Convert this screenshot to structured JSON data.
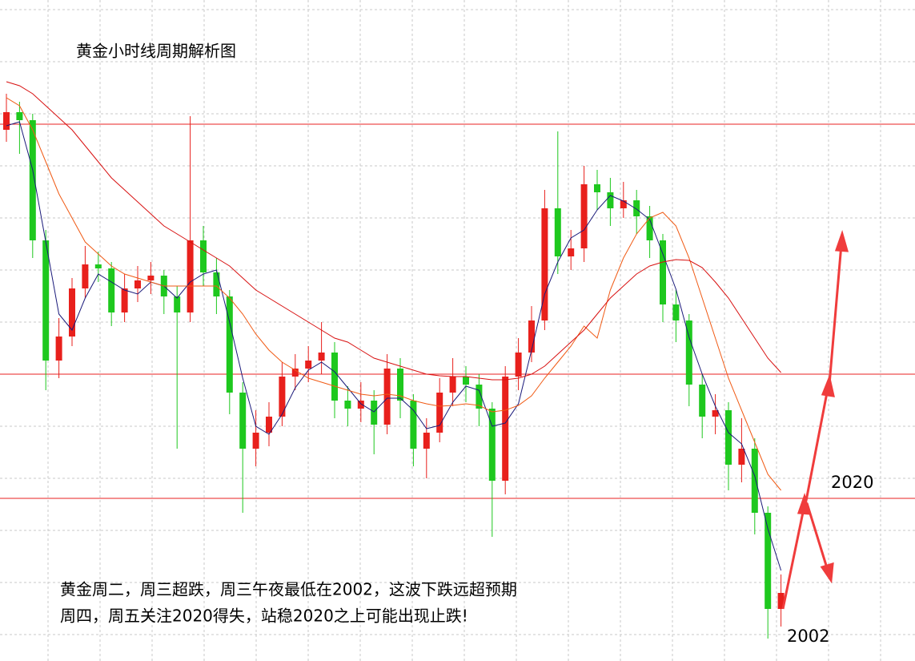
{
  "chart_data": {
    "type": "candlestick",
    "title": "黄金小时线周期解析图",
    "annotation_lines": [
      "黄金周二，周三超跌，周三午夜最低在2002，这波下跌远超预期",
      "周四，周五关注2020得失，站稳2020之上可能出现止跌!"
    ],
    "ylim": [
      1999.7,
      2082.2
    ],
    "grid": true,
    "up_color": "#e8201c",
    "down_color": "#1ec81e",
    "open": [
      2066.0,
      2068.2,
      2067.2,
      2052.2,
      2037.2,
      2040.2,
      2046.2,
      2049.2,
      2048.7,
      2043.2,
      2046.2,
      2047.2,
      2047.8,
      2045.2,
      2043.2,
      2052.2,
      2048.2,
      2045.2,
      2033.2,
      2026.2,
      2028.2,
      2030.2,
      2035.2,
      2036.2,
      2037.2,
      2038.2,
      2032.2,
      2031.2,
      2032.2,
      2029.2,
      2036.2,
      2032.2,
      2026.2,
      2028.2,
      2033.2,
      2035.2,
      2034.2,
      2031.2,
      2022.2,
      2035.2,
      2038.2,
      2042.2,
      2056.2,
      2050.2,
      2051.2,
      2059.2,
      2058.2,
      2056.2,
      2057.2,
      2055.2,
      2052.2,
      2044.2,
      2042.2,
      2034.2,
      2030.2,
      2031.0,
      2024.2,
      2026.2,
      2018.2,
      2006.2
    ],
    "high": [
      2070.5,
      2069.5,
      2068.0,
      2053.5,
      2042.5,
      2047.5,
      2051.5,
      2050.8,
      2049.5,
      2048.0,
      2049.0,
      2049.5,
      2048.5,
      2046.5,
      2067.7,
      2054.0,
      2050.0,
      2046.0,
      2034.5,
      2031.0,
      2032.0,
      2037.0,
      2038.0,
      2039.0,
      2042.0,
      2039.5,
      2034.0,
      2034.5,
      2033.5,
      2038.0,
      2037.5,
      2033.0,
      2030.0,
      2035.0,
      2037.5,
      2036.5,
      2035.5,
      2032.0,
      2036.5,
      2040.0,
      2044.0,
      2058.5,
      2065.8,
      2053.5,
      2061.5,
      2061.0,
      2060.0,
      2059.5,
      2058.5,
      2056.5,
      2053.0,
      2046.0,
      2043.0,
      2035.5,
      2033.0,
      2032.0,
      2030.0,
      2027.5,
      2019.0,
      2010.5
    ],
    "low": [
      2064.5,
      2063.0,
      2050.0,
      2033.5,
      2035.0,
      2039.0,
      2045.0,
      2047.0,
      2041.5,
      2042.0,
      2044.5,
      2045.5,
      2043.0,
      2026.2,
      2042.0,
      2046.5,
      2043.0,
      2030.5,
      2018.2,
      2024.0,
      2026.5,
      2029.0,
      2033.5,
      2034.5,
      2035.5,
      2030.0,
      2029.0,
      2029.5,
      2025.5,
      2028.0,
      2030.0,
      2024.0,
      2022.5,
      2027.0,
      2031.5,
      2032.0,
      2029.0,
      2015.2,
      2020.5,
      2033.5,
      2037.0,
      2041.0,
      2048.0,
      2048.5,
      2049.5,
      2056.0,
      2054.0,
      2055.0,
      2053.0,
      2050.0,
      2042.0,
      2039.5,
      2031.5,
      2027.5,
      2028.0,
      2021.0,
      2022.0,
      2015.5,
      2002.5,
      2004.0
    ],
    "close": [
      2068.2,
      2067.2,
      2052.2,
      2037.2,
      2040.2,
      2046.2,
      2049.2,
      2048.7,
      2043.2,
      2046.2,
      2047.2,
      2047.8,
      2045.2,
      2043.2,
      2052.2,
      2048.2,
      2045.2,
      2033.2,
      2026.2,
      2028.2,
      2030.2,
      2035.2,
      2036.2,
      2037.2,
      2038.2,
      2032.2,
      2031.2,
      2032.2,
      2029.2,
      2036.2,
      2032.2,
      2026.2,
      2028.2,
      2033.2,
      2035.2,
      2034.2,
      2031.2,
      2022.2,
      2035.2,
      2038.2,
      2042.2,
      2056.2,
      2050.2,
      2051.2,
      2059.2,
      2058.2,
      2056.2,
      2057.2,
      2055.2,
      2052.2,
      2044.2,
      2042.2,
      2034.2,
      2030.2,
      2031.0,
      2024.2,
      2026.2,
      2018.2,
      2006.2,
      2008.2
    ],
    "series": [
      {
        "color": "#1a1a7a",
        "values": [
          2066.5,
          2067,
          2061,
          2052,
          2043,
          2041,
          2045,
          2048,
          2047,
          2046,
          2045.5,
          2047,
          2046.5,
          2045,
          2047,
          2048,
          2048.5,
          2042,
          2035,
          2029,
          2028,
          2030.5,
          2033.8,
          2036,
          2037,
          2035.8,
          2033.8,
          2031.8,
          2030.8,
          2032.5,
          2032.5,
          2031,
          2028.7,
          2029.1,
          2032,
          2034,
          2033.5,
          2029,
          2029.4,
          2031.8,
          2038.5,
          2045.5,
          2049.5,
          2052.5,
          2053.5,
          2056,
          2057.8,
          2057.1,
          2056.1,
          2054.8,
          2050.5,
          2046.1,
          2040.1,
          2035.5,
          2031.5,
          2028.2,
          2026.8,
          2022.8,
          2016.2,
          2011
        ]
      },
      {
        "color": "#f05a14",
        "values": [
          2070,
          2069,
          2066,
          2062,
          2058,
          2055,
          2052,
          2050.5,
          2049,
          2048,
          2047.5,
          2047,
          2046.5,
          2046.5,
          2046.5,
          2046.5,
          2046.5,
          2045,
          2043,
          2040.5,
          2038.5,
          2037,
          2036,
          2035,
          2034.5,
          2034,
          2033.5,
          2033,
          2032.8,
          2033,
          2032.8,
          2032.2,
          2031.8,
          2031.5,
          2031.6,
          2031.8,
          2031.6,
          2030.8,
          2031,
          2031.6,
          2032.8,
          2035,
          2037,
          2039,
          2041.5,
          2040,
          2046,
          2050,
          2053,
          2055,
          2055.7,
          2054,
          2050,
          2045,
          2040,
          2035,
          2031,
          2027,
          2023,
          2021
        ]
      },
      {
        "color": "#d81010",
        "values": [
          2072,
          2071.5,
          2070.5,
          2069,
          2067.5,
          2066,
          2064,
          2062,
          2060,
          2058.5,
          2057,
          2055.5,
          2054,
          2053,
          2052,
          2051,
          2050,
          2049,
          2047.5,
          2046,
          2045,
          2044,
          2043,
          2042,
          2041,
          2040,
          2039.5,
          2038.5,
          2037.5,
          2037,
          2036.5,
          2036,
          2035.5,
          2035.3,
          2035.2,
          2035.2,
          2035,
          2034.8,
          2034.8,
          2035,
          2035.5,
          2036.5,
          2038,
          2039.5,
          2041,
          2043,
          2045,
          2046.5,
          2048,
          2049,
          2049.5,
          2049.8,
          2049.7,
          2048.8,
          2047,
          2045,
          2042.5,
          2040,
          2037.5,
          2035.7
        ]
      }
    ],
    "levels": [
      2066.7,
      2035.5,
      2020
    ],
    "level_color": "#e82020",
    "low_label": 2002
  }
}
